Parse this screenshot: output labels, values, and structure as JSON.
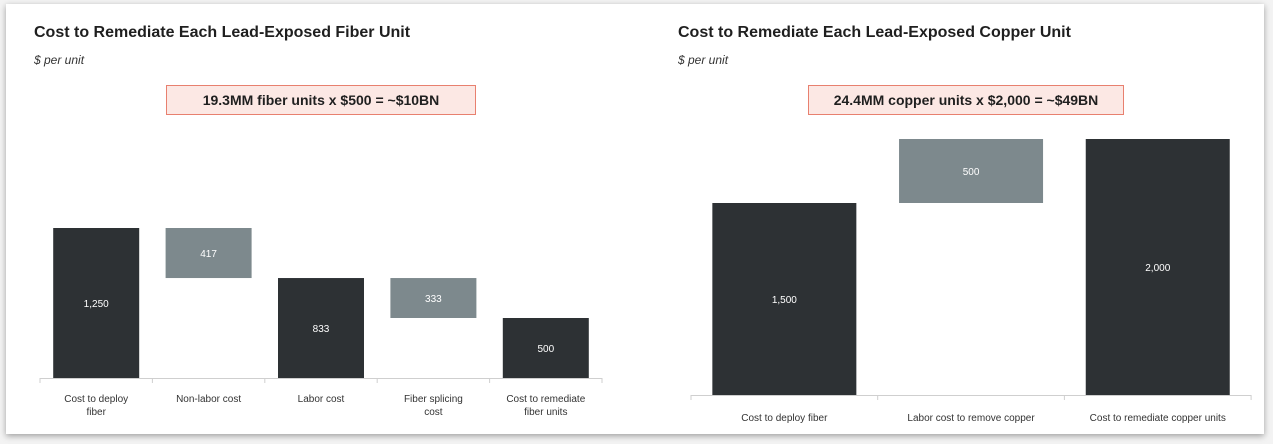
{
  "colors": {
    "total": "#2d3134",
    "delta": "#7d898d",
    "axis": "#cfcfcf"
  },
  "chart_data": [
    {
      "type": "bar",
      "subtype": "waterfall",
      "title": "Cost to Remediate Each Lead-Exposed Fiber Unit",
      "subtitle": "$ per unit",
      "callout": "19.3MM fiber units x $500 = ~$10BN",
      "categories": [
        "Cost to deploy fiber",
        "Non-labor cost",
        "Labor cost",
        "Fiber splicing cost",
        "Cost to remediate fiber units"
      ],
      "values": [
        1250,
        417,
        833,
        333,
        500
      ],
      "value_labels": [
        "1,250",
        "417",
        "833",
        "333",
        "500"
      ],
      "bar_kinds": [
        "total",
        "delta",
        "total",
        "delta",
        "total"
      ],
      "ylim": [
        0,
        1500
      ],
      "grid": false,
      "legend": "none"
    },
    {
      "type": "bar",
      "subtype": "waterfall",
      "title": "Cost to Remediate Each Lead-Exposed Copper Unit",
      "subtitle": "$ per unit",
      "callout": "24.4MM copper units x $2,000 = ~$49BN",
      "categories": [
        "Cost to deploy fiber",
        "Labor cost to remove copper",
        "Cost to remediate copper units"
      ],
      "values": [
        1500,
        500,
        2000
      ],
      "value_labels": [
        "1,500",
        "500",
        "2,000"
      ],
      "bar_kinds": [
        "total",
        "delta",
        "total"
      ],
      "ylim": [
        0,
        2000
      ],
      "grid": false,
      "legend": "none"
    }
  ]
}
